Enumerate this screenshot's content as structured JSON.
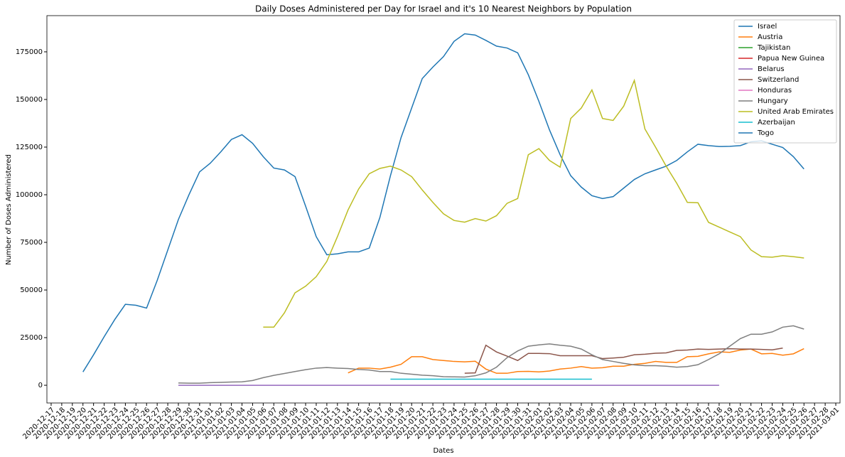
{
  "chart_data": {
    "type": "line",
    "title": "Daily Doses Administered per Day for Israel and it's 10 Nearest Neighbors by Population",
    "xlabel": "Dates",
    "ylabel": "Number of Doses Administered",
    "x": [
      "2020-12-17",
      "2020-12-18",
      "2020-12-19",
      "2020-12-20",
      "2020-12-21",
      "2020-12-22",
      "2020-12-23",
      "2020-12-24",
      "2020-12-25",
      "2020-12-26",
      "2020-12-27",
      "2020-12-28",
      "2020-12-29",
      "2020-12-30",
      "2020-12-31",
      "2021-01-01",
      "2021-01-02",
      "2021-01-03",
      "2021-01-04",
      "2021-01-05",
      "2021-01-06",
      "2021-01-07",
      "2021-01-08",
      "2021-01-09",
      "2021-01-10",
      "2021-01-11",
      "2021-01-12",
      "2021-01-13",
      "2021-01-14",
      "2021-01-15",
      "2021-01-16",
      "2021-01-17",
      "2021-01-18",
      "2021-01-19",
      "2021-01-20",
      "2021-01-21",
      "2021-01-22",
      "2021-01-23",
      "2021-01-24",
      "2021-01-25",
      "2021-01-26",
      "2021-01-27",
      "2021-01-28",
      "2021-01-29",
      "2021-01-30",
      "2021-01-31",
      "2021-02-01",
      "2021-02-02",
      "2021-02-03",
      "2021-02-04",
      "2021-02-05",
      "2021-02-06",
      "2021-02-07",
      "2021-02-08",
      "2021-02-09",
      "2021-02-10",
      "2021-02-11",
      "2021-02-12",
      "2021-02-13",
      "2021-02-14",
      "2021-02-15",
      "2021-02-16",
      "2021-02-17",
      "2021-02-18",
      "2021-02-19",
      "2021-02-20",
      "2021-02-21",
      "2021-02-22",
      "2021-02-23",
      "2021-02-24",
      "2021-02-25",
      "2021-02-26",
      "2021-02-27",
      "2021-02-28",
      "2021-03-01"
    ],
    "ylim": [
      -9300,
      194000
    ],
    "yticks": [
      0,
      25000,
      50000,
      75000,
      100000,
      125000,
      150000,
      175000
    ],
    "grid": false,
    "legend": "upper right",
    "series": [
      {
        "name": "Israel",
        "color": "#1f77b4",
        "values": [
          null,
          null,
          null,
          7000,
          16000,
          25500,
          34500,
          42500,
          42000,
          40500,
          55000,
          71000,
          87000,
          100000,
          112000,
          116500,
          122500,
          129000,
          131500,
          127000,
          120000,
          114000,
          113000,
          109500,
          94000,
          78000,
          68500,
          69000,
          70000,
          70000,
          72000,
          88000,
          110000,
          130000,
          145500,
          161000,
          167000,
          172500,
          180500,
          184500,
          183800,
          181000,
          178000,
          177000,
          174500,
          163000,
          149000,
          134000,
          121000,
          110000,
          104000,
          99500,
          98000,
          99000,
          103500,
          108000,
          111000,
          113000,
          115000,
          118000,
          122500,
          126500,
          125800,
          125300,
          125400,
          125800,
          127800,
          128300,
          126500,
          124800,
          120000,
          113500,
          null,
          null,
          null
        ]
      },
      {
        "name": "Austria",
        "color": "#ff7f0e",
        "values": [
          null,
          null,
          null,
          null,
          null,
          null,
          null,
          null,
          null,
          null,
          null,
          null,
          null,
          null,
          null,
          null,
          null,
          null,
          null,
          null,
          null,
          null,
          null,
          null,
          null,
          null,
          null,
          null,
          6500,
          9000,
          9000,
          8500,
          9500,
          11000,
          15000,
          15000,
          13500,
          13000,
          12500,
          12300,
          12600,
          8500,
          6300,
          6300,
          7200,
          7300,
          7000,
          7500,
          8500,
          9000,
          9800,
          9000,
          9200,
          10000,
          10000,
          11000,
          11500,
          12500,
          12000,
          12000,
          15000,
          15200,
          16500,
          17500,
          17300,
          18500,
          19000,
          16500,
          16700,
          15800,
          16500,
          19200,
          null,
          null,
          null
        ]
      },
      {
        "name": "Tajikistan",
        "color": "#2ca02c",
        "values": [
          null,
          null,
          null,
          null,
          null,
          null,
          null,
          null,
          null,
          null,
          null,
          null,
          null,
          null,
          null,
          null,
          null,
          null,
          null,
          null,
          null,
          null,
          null,
          null,
          null,
          null,
          null,
          null,
          null,
          null,
          null,
          null,
          null,
          null,
          null,
          null,
          null,
          null,
          null,
          null,
          null,
          null,
          null,
          null,
          null,
          null,
          null,
          null,
          null,
          null,
          null,
          null,
          null,
          null,
          null,
          null,
          null,
          null,
          null,
          null,
          null,
          null,
          null,
          null,
          null,
          null,
          null,
          null,
          null,
          null,
          null,
          null,
          null,
          null,
          null
        ]
      },
      {
        "name": "Papua New Guinea",
        "color": "#d62728",
        "values": [
          null,
          null,
          null,
          null,
          null,
          null,
          null,
          null,
          null,
          null,
          null,
          null,
          null,
          null,
          null,
          null,
          null,
          null,
          null,
          null,
          null,
          null,
          null,
          null,
          null,
          null,
          null,
          null,
          null,
          null,
          null,
          null,
          null,
          null,
          null,
          null,
          null,
          null,
          null,
          null,
          null,
          null,
          null,
          null,
          null,
          null,
          null,
          null,
          null,
          null,
          null,
          null,
          null,
          null,
          null,
          null,
          null,
          null,
          null,
          null,
          null,
          null,
          null,
          null,
          null,
          null,
          null,
          null,
          null,
          null,
          null,
          null,
          null,
          null,
          null
        ]
      },
      {
        "name": "Belarus",
        "color": "#9467bd",
        "values": [
          null,
          null,
          null,
          null,
          null,
          null,
          null,
          null,
          null,
          null,
          null,
          null,
          0,
          0,
          0,
          0,
          0,
          0,
          0,
          0,
          0,
          0,
          0,
          0,
          0,
          0,
          0,
          0,
          0,
          0,
          0,
          0,
          0,
          0,
          0,
          0,
          0,
          0,
          0,
          0,
          0,
          0,
          0,
          0,
          0,
          0,
          0,
          0,
          0,
          0,
          0,
          0,
          0,
          0,
          0,
          0,
          0,
          0,
          0,
          0,
          0,
          0,
          0,
          0,
          null,
          null,
          null,
          null,
          null,
          null,
          null,
          null,
          null,
          null,
          null
        ]
      },
      {
        "name": "Switzerland",
        "color": "#8c564b",
        "values": [
          null,
          null,
          null,
          null,
          null,
          null,
          null,
          null,
          null,
          null,
          null,
          null,
          null,
          null,
          null,
          null,
          null,
          null,
          null,
          null,
          null,
          null,
          null,
          null,
          null,
          null,
          null,
          null,
          null,
          null,
          null,
          null,
          null,
          null,
          null,
          null,
          null,
          null,
          null,
          6300,
          6500,
          21000,
          17500,
          15300,
          13000,
          16700,
          16700,
          16600,
          15500,
          15500,
          15500,
          15500,
          14000,
          14300,
          14700,
          16000,
          16300,
          16800,
          17000,
          18300,
          18500,
          19000,
          18800,
          19000,
          19200,
          19000,
          19000,
          18800,
          18600,
          19500,
          null,
          null,
          null,
          null,
          null
        ]
      },
      {
        "name": "Honduras",
        "color": "#e377c2",
        "values": [
          null,
          null,
          null,
          null,
          null,
          null,
          null,
          null,
          null,
          null,
          null,
          null,
          null,
          null,
          null,
          null,
          null,
          null,
          null,
          null,
          null,
          null,
          null,
          null,
          null,
          null,
          null,
          null,
          null,
          null,
          null,
          null,
          null,
          null,
          null,
          null,
          null,
          null,
          null,
          null,
          null,
          null,
          null,
          null,
          null,
          null,
          null,
          null,
          null,
          null,
          null,
          null,
          null,
          null,
          null,
          null,
          null,
          null,
          null,
          null,
          null,
          null,
          null,
          null,
          null,
          null,
          null,
          null,
          null,
          null,
          null,
          null,
          null,
          null,
          null
        ]
      },
      {
        "name": "Hungary",
        "color": "#7f7f7f",
        "values": [
          null,
          null,
          null,
          null,
          null,
          null,
          null,
          null,
          null,
          null,
          null,
          null,
          1200,
          1100,
          1100,
          1400,
          1500,
          1700,
          1800,
          2500,
          4000,
          5200,
          6200,
          7200,
          8200,
          9000,
          9300,
          9000,
          8800,
          8300,
          8000,
          7200,
          7200,
          6300,
          5800,
          5300,
          5000,
          4500,
          4400,
          4300,
          5000,
          6500,
          9500,
          14500,
          18000,
          20500,
          21200,
          21700,
          21000,
          20500,
          19000,
          16000,
          13500,
          12500,
          11500,
          10700,
          10300,
          10300,
          10000,
          9500,
          9800,
          10800,
          13500,
          16500,
          20500,
          24500,
          26800,
          26800,
          28000,
          30500,
          31200,
          29500,
          null,
          null,
          null
        ]
      },
      {
        "name": "United Arab Emirates",
        "color": "#bcbd22",
        "values": [
          null,
          null,
          null,
          null,
          null,
          null,
          null,
          null,
          null,
          null,
          null,
          null,
          null,
          null,
          null,
          null,
          null,
          null,
          null,
          null,
          30500,
          30500,
          38000,
          48500,
          52000,
          57000,
          65000,
          78000,
          92000,
          103000,
          111000,
          113800,
          115000,
          113000,
          109500,
          102500,
          96000,
          90000,
          86500,
          85600,
          87500,
          86200,
          89000,
          95500,
          98000,
          121000,
          124200,
          118000,
          114500,
          140000,
          145500,
          155000,
          140000,
          139000,
          146500,
          160000,
          134500,
          125000,
          115000,
          106000,
          96000,
          95800,
          85500,
          83000,
          80500,
          78000,
          71000,
          67500,
          67200,
          68000,
          67500,
          66800,
          null,
          null,
          null
        ]
      },
      {
        "name": "Azerbaijan",
        "color": "#17becf",
        "values": [
          null,
          null,
          null,
          null,
          null,
          null,
          null,
          null,
          null,
          null,
          null,
          null,
          null,
          null,
          null,
          null,
          null,
          null,
          null,
          null,
          null,
          null,
          null,
          null,
          null,
          null,
          null,
          null,
          null,
          null,
          null,
          null,
          3200,
          3200,
          3200,
          3200,
          3200,
          3200,
          3200,
          3200,
          3200,
          3200,
          3200,
          3200,
          3200,
          3200,
          3200,
          3200,
          3200,
          3200,
          3200,
          3200,
          null,
          null,
          null,
          null,
          null,
          null,
          null,
          null,
          null,
          null,
          null,
          null,
          null,
          null,
          null,
          null,
          null,
          null,
          null,
          null,
          null,
          null,
          null
        ]
      },
      {
        "name": "Togo",
        "color": "#1f77b4",
        "values": [
          null,
          null,
          null,
          null,
          null,
          null,
          null,
          null,
          null,
          null,
          null,
          null,
          null,
          null,
          null,
          null,
          null,
          null,
          null,
          null,
          null,
          null,
          null,
          null,
          null,
          null,
          null,
          null,
          null,
          null,
          null,
          null,
          null,
          null,
          null,
          null,
          null,
          null,
          null,
          null,
          null,
          null,
          null,
          null,
          null,
          null,
          null,
          null,
          null,
          null,
          null,
          null,
          null,
          null,
          null,
          null,
          null,
          null,
          null,
          null,
          null,
          null,
          null,
          null,
          null,
          null,
          null,
          null,
          null,
          null,
          null,
          null,
          null,
          null,
          null
        ]
      }
    ]
  }
}
